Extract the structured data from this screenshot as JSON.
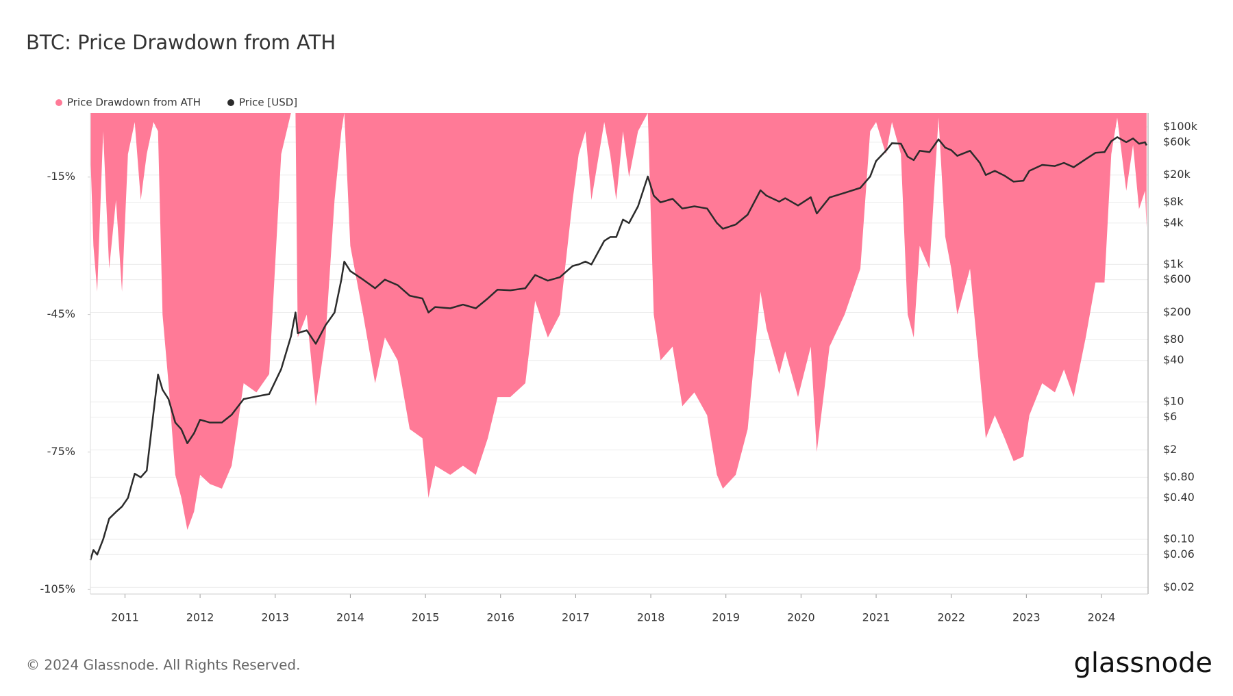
{
  "chart_data": {
    "type": "area-line",
    "title": "BTC: Price Drawdown from ATH",
    "footer": "© 2024 Glassnode. All Rights Reserved.",
    "brand": "glassnode",
    "x": [
      2010.54,
      2010.58,
      2010.63,
      2010.71,
      2010.79,
      2010.88,
      2010.96,
      2011.04,
      2011.13,
      2011.21,
      2011.29,
      2011.38,
      2011.44,
      2011.5,
      2011.58,
      2011.67,
      2011.75,
      2011.83,
      2011.92,
      2012.0,
      2012.13,
      2012.29,
      2012.42,
      2012.58,
      2012.75,
      2012.92,
      2013.08,
      2013.21,
      2013.27,
      2013.3,
      2013.42,
      2013.54,
      2013.67,
      2013.79,
      2013.88,
      2013.92,
      2014.0,
      2014.17,
      2014.33,
      2014.46,
      2014.63,
      2014.79,
      2014.96,
      2015.04,
      2015.13,
      2015.33,
      2015.5,
      2015.67,
      2015.83,
      2015.96,
      2016.13,
      2016.33,
      2016.46,
      2016.63,
      2016.79,
      2016.96,
      2017.04,
      2017.13,
      2017.21,
      2017.38,
      2017.46,
      2017.54,
      2017.63,
      2017.71,
      2017.83,
      2017.96,
      2018.04,
      2018.13,
      2018.29,
      2018.42,
      2018.58,
      2018.75,
      2018.88,
      2018.96,
      2019.13,
      2019.29,
      2019.46,
      2019.54,
      2019.71,
      2019.79,
      2019.96,
      2020.13,
      2020.21,
      2020.38,
      2020.58,
      2020.79,
      2020.92,
      2021.0,
      2021.13,
      2021.21,
      2021.33,
      2021.42,
      2021.5,
      2021.58,
      2021.71,
      2021.83,
      2021.92,
      2022.0,
      2022.08,
      2022.25,
      2022.38,
      2022.46,
      2022.58,
      2022.71,
      2022.83,
      2022.96,
      2023.04,
      2023.21,
      2023.38,
      2023.5,
      2023.63,
      2023.79,
      2023.92,
      2024.04,
      2024.13,
      2024.21,
      2024.33,
      2024.42,
      2024.5,
      2024.58,
      2024.6
    ],
    "series": [
      {
        "name": "Price Drawdown from ATH",
        "color": "#ff7a97",
        "axis": "y",
        "values": [
          -10,
          -30,
          -40,
          -5,
          -35,
          -20,
          -40,
          -10,
          -3,
          -20,
          -10,
          -3,
          -5,
          -45,
          -60,
          -80,
          -85,
          -92,
          -88,
          -80,
          -82,
          -83,
          -78,
          -60,
          -62,
          -58,
          -10,
          -1,
          -1,
          -50,
          -45,
          -65,
          -50,
          -20,
          -5,
          -1,
          -30,
          -45,
          -60,
          -50,
          -55,
          -70,
          -72,
          -85,
          -78,
          -80,
          -78,
          -80,
          -72,
          -63,
          -63,
          -60,
          -42,
          -50,
          -45,
          -20,
          -10,
          -5,
          -20,
          -3,
          -10,
          -20,
          -5,
          -15,
          -5,
          -1,
          -45,
          -55,
          -52,
          -65,
          -62,
          -67,
          -80,
          -83,
          -80,
          -70,
          -40,
          -48,
          -58,
          -53,
          -63,
          -52,
          -75,
          -52,
          -45,
          -35,
          -5,
          -3,
          -10,
          -3,
          -10,
          -45,
          -50,
          -30,
          -35,
          -2,
          -28,
          -35,
          -45,
          -35,
          -58,
          -72,
          -67,
          -72,
          -77,
          -76,
          -67,
          -60,
          -62,
          -57,
          -63,
          -50,
          -38,
          -38,
          -10,
          -2,
          -18,
          -8,
          -22,
          -18,
          -26
        ]
      },
      {
        "name": "Price [USD]",
        "color": "#2b2b2b",
        "axis": "y2",
        "values": [
          0.05,
          0.07,
          0.06,
          0.1,
          0.2,
          0.25,
          0.3,
          0.4,
          0.9,
          0.8,
          1.0,
          7,
          25,
          15,
          11,
          5,
          4,
          2.5,
          3.5,
          5.5,
          5,
          5,
          6.5,
          11,
          12,
          13,
          30,
          90,
          200,
          100,
          110,
          70,
          130,
          200,
          600,
          1100,
          800,
          600,
          450,
          600,
          500,
          350,
          320,
          200,
          240,
          230,
          260,
          230,
          320,
          430,
          420,
          450,
          700,
          580,
          650,
          950,
          1000,
          1100,
          1000,
          2200,
          2500,
          2500,
          4500,
          4000,
          7000,
          19000,
          10000,
          8000,
          9000,
          6500,
          7000,
          6500,
          4000,
          3300,
          3800,
          5300,
          12000,
          10000,
          8200,
          9200,
          7200,
          9500,
          5500,
          9400,
          11000,
          13000,
          19000,
          32000,
          45000,
          58000,
          57000,
          37000,
          33000,
          45000,
          43000,
          66000,
          50000,
          46000,
          38000,
          45000,
          30000,
          20000,
          23000,
          19500,
          16000,
          16500,
          23000,
          28000,
          27000,
          30000,
          26000,
          34000,
          42000,
          43000,
          62000,
          71000,
          60000,
          68000,
          57000,
          60000,
          54000
        ]
      }
    ],
    "xlim": [
      2010.54,
      2024.62
    ],
    "xticks": [
      2011,
      2012,
      2013,
      2014,
      2015,
      2016,
      2017,
      2018,
      2019,
      2020,
      2021,
      2022,
      2023,
      2024
    ],
    "ylim": [
      -106,
      -1
    ],
    "yticks": [
      {
        "value": -15,
        "label": "-15%"
      },
      {
        "value": -45,
        "label": "-45%"
      },
      {
        "value": -75,
        "label": "-75%"
      },
      {
        "value": -105,
        "label": "-105%"
      }
    ],
    "y2scale": "log",
    "y2lim": [
      0.016,
      160000
    ],
    "y2ticks": [
      {
        "value": 100000,
        "label": "$100k"
      },
      {
        "value": 60000,
        "label": "$60k"
      },
      {
        "value": 20000,
        "label": "$20k"
      },
      {
        "value": 8000,
        "label": "$8k"
      },
      {
        "value": 4000,
        "label": "$4k"
      },
      {
        "value": 1000,
        "label": "$1k"
      },
      {
        "value": 600,
        "label": "$600"
      },
      {
        "value": 200,
        "label": "$200"
      },
      {
        "value": 80,
        "label": "$80"
      },
      {
        "value": 40,
        "label": "$40"
      },
      {
        "value": 10,
        "label": "$10"
      },
      {
        "value": 6,
        "label": "$6"
      },
      {
        "value": 2,
        "label": "$2"
      },
      {
        "value": 0.8,
        "label": "$0.80"
      },
      {
        "value": 0.4,
        "label": "$0.40"
      },
      {
        "value": 0.1,
        "label": "$0.10"
      },
      {
        "value": 0.06,
        "label": "$0.06"
      },
      {
        "value": 0.02,
        "label": "$0.02"
      }
    ],
    "grid": true,
    "legend": "top-left"
  }
}
